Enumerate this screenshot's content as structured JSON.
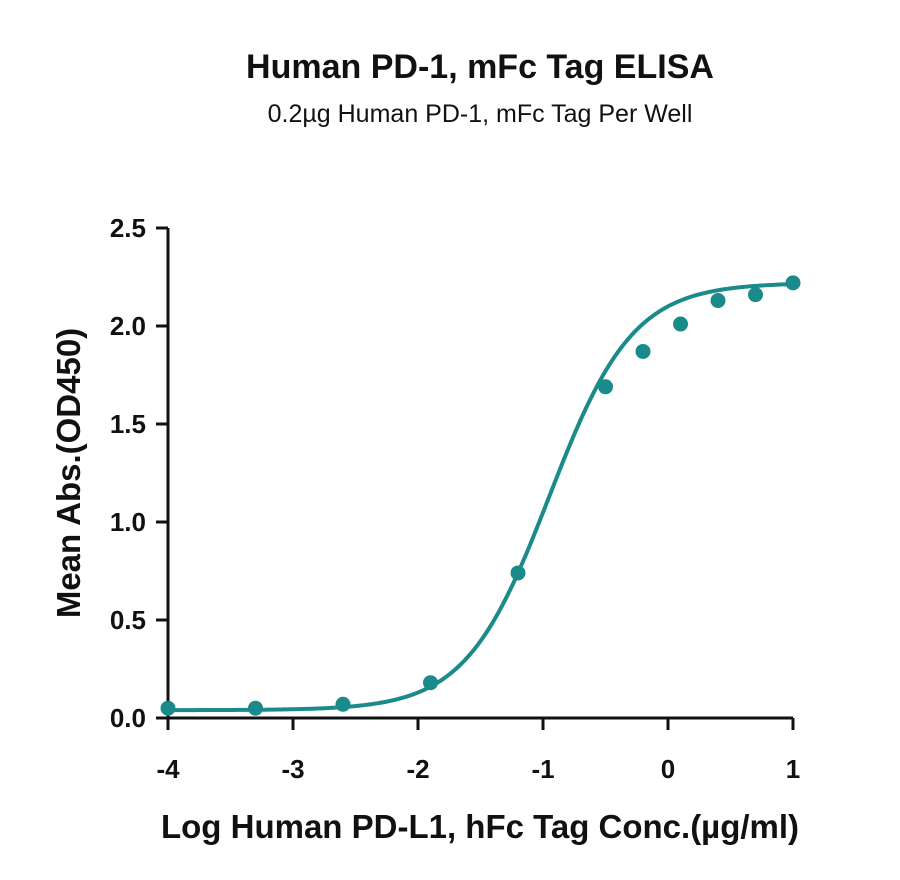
{
  "chart_data": {
    "type": "scatter",
    "title": "Human PD-1, mFc Tag ELISA",
    "subtitle": "0.2µg Human PD-1, mFc Tag Per Well",
    "xlabel": "Log Human PD-L1, hFc Tag Conc.(µg/ml)",
    "ylabel": "Mean Abs.(OD450)",
    "xlim": [
      -4,
      1
    ],
    "ylim": [
      0,
      2.5
    ],
    "x_ticks": [
      -4,
      -3,
      -2,
      -1,
      0,
      1
    ],
    "x_tick_labels": [
      "-4",
      "-3",
      "-2",
      "-1",
      "0",
      "1"
    ],
    "y_ticks": [
      0,
      0.5,
      1,
      1.5,
      2,
      2.5
    ],
    "y_tick_labels": [
      "0.0",
      "0.5",
      "1.0",
      "1.5",
      "2.0",
      "2.5"
    ],
    "grid": false,
    "colors": {
      "series": "#1a8a8a",
      "axis": "#111111"
    },
    "series": [
      {
        "points": [
          {
            "x": -4.0,
            "y": 0.05
          },
          {
            "x": -3.3,
            "y": 0.05
          },
          {
            "x": -2.6,
            "y": 0.07
          },
          {
            "x": -1.9,
            "y": 0.18
          },
          {
            "x": -1.2,
            "y": 0.74
          },
          {
            "x": -0.5,
            "y": 1.69
          },
          {
            "x": -0.2,
            "y": 1.87
          },
          {
            "x": 0.1,
            "y": 2.01
          },
          {
            "x": 0.4,
            "y": 2.13
          },
          {
            "x": 0.7,
            "y": 2.16
          },
          {
            "x": 1.0,
            "y": 2.22
          }
        ],
        "fit": {
          "model": "4PL",
          "bottom": 0.04,
          "top": 2.22,
          "logEC50": -0.95,
          "hill": 1.3
        }
      }
    ]
  }
}
